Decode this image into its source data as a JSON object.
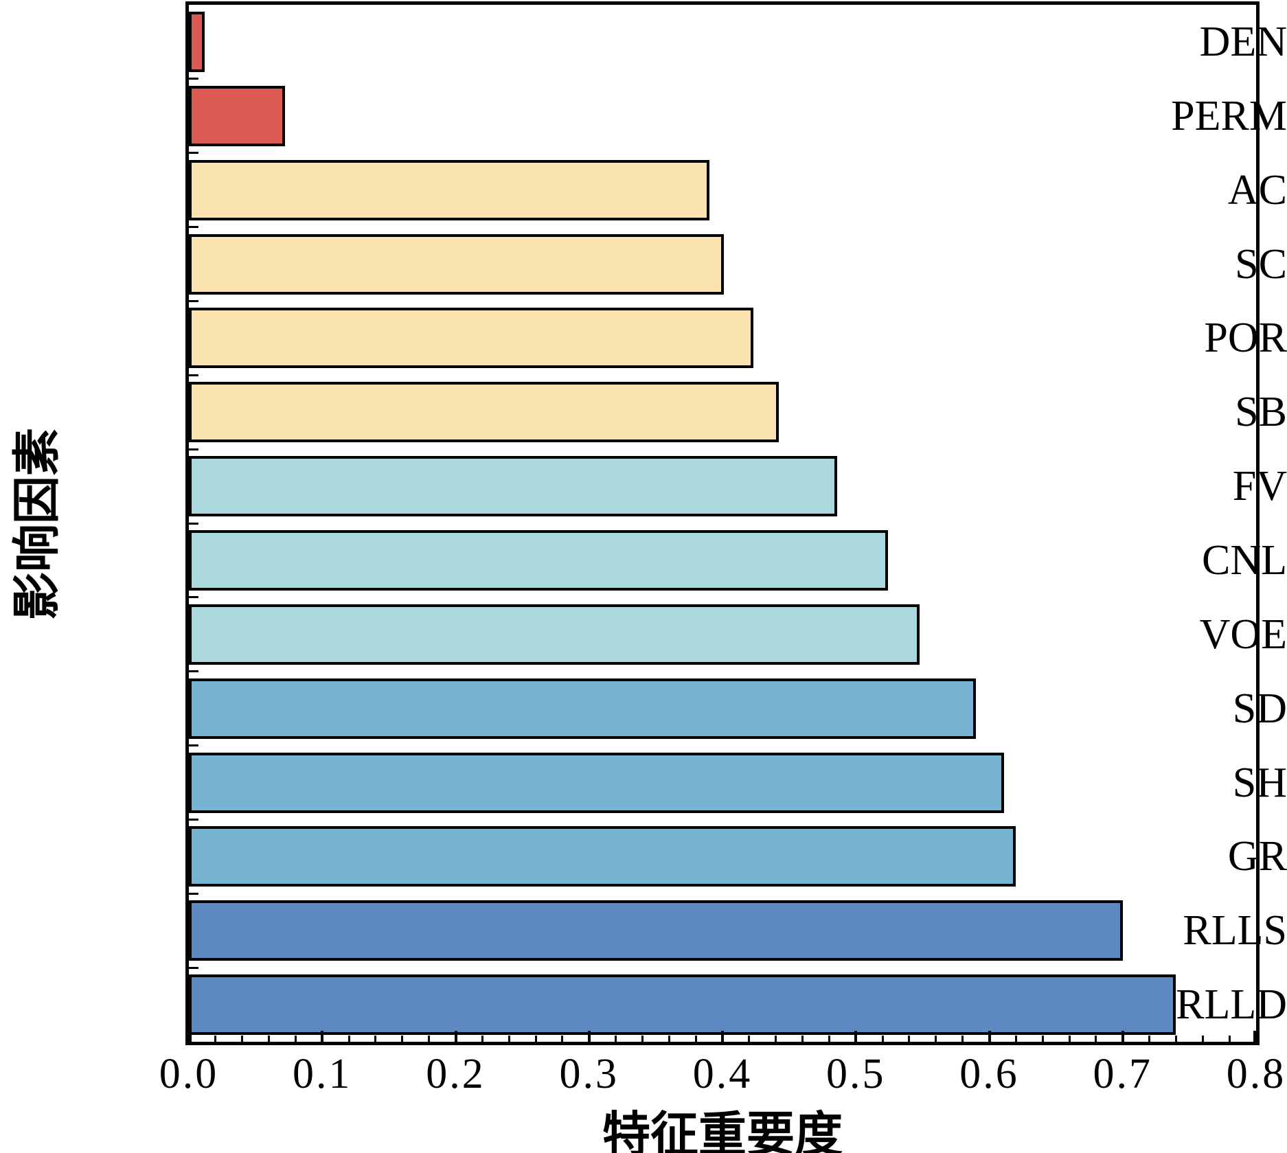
{
  "chart_data": {
    "type": "bar",
    "orientation": "horizontal",
    "xlabel": "特征重要度",
    "ylabel": "影响因素",
    "xlim": [
      0.0,
      0.8
    ],
    "x_major_tick_labels": [
      "0.0",
      "0.1",
      "0.2",
      "0.3",
      "0.4",
      "0.5",
      "0.6",
      "0.7",
      "0.8"
    ],
    "x_major_tick_values": [
      0.0,
      0.1,
      0.2,
      0.3,
      0.4,
      0.5,
      0.6,
      0.7,
      0.8
    ],
    "x_minor_tick_step": 0.02,
    "grid": "off",
    "legend": "none",
    "tick_direction": "in",
    "categories_top_to_bottom": [
      "DEN",
      "PERM",
      "AC",
      "SC",
      "POR",
      "SB",
      "FV",
      "CNL",
      "VOE",
      "SD",
      "SH",
      "GR",
      "RLLS",
      "RLLD"
    ],
    "values": [
      0.012,
      0.072,
      0.39,
      0.401,
      0.423,
      0.442,
      0.486,
      0.524,
      0.548,
      0.59,
      0.611,
      0.62,
      0.7,
      0.74
    ],
    "bar_colors": [
      "#dc5a52",
      "#dc5a52",
      "#fbe3b1",
      "#fbe3b1",
      "#fbe3b1",
      "#fbe3b1",
      "#abd7df",
      "#abd7df",
      "#abd7df",
      "#76b3d3",
      "#76b3d3",
      "#76b3d3",
      "#5e8ac4",
      "#5e8ac4"
    ],
    "bar_edge_color": "#000000",
    "color_groups": {
      "red": "#dc5a52",
      "cream": "#fbe3b1",
      "light_cyan": "#abd7df",
      "medium_blue": "#76b3d3",
      "dark_blue": "#5e8ac4"
    }
  }
}
